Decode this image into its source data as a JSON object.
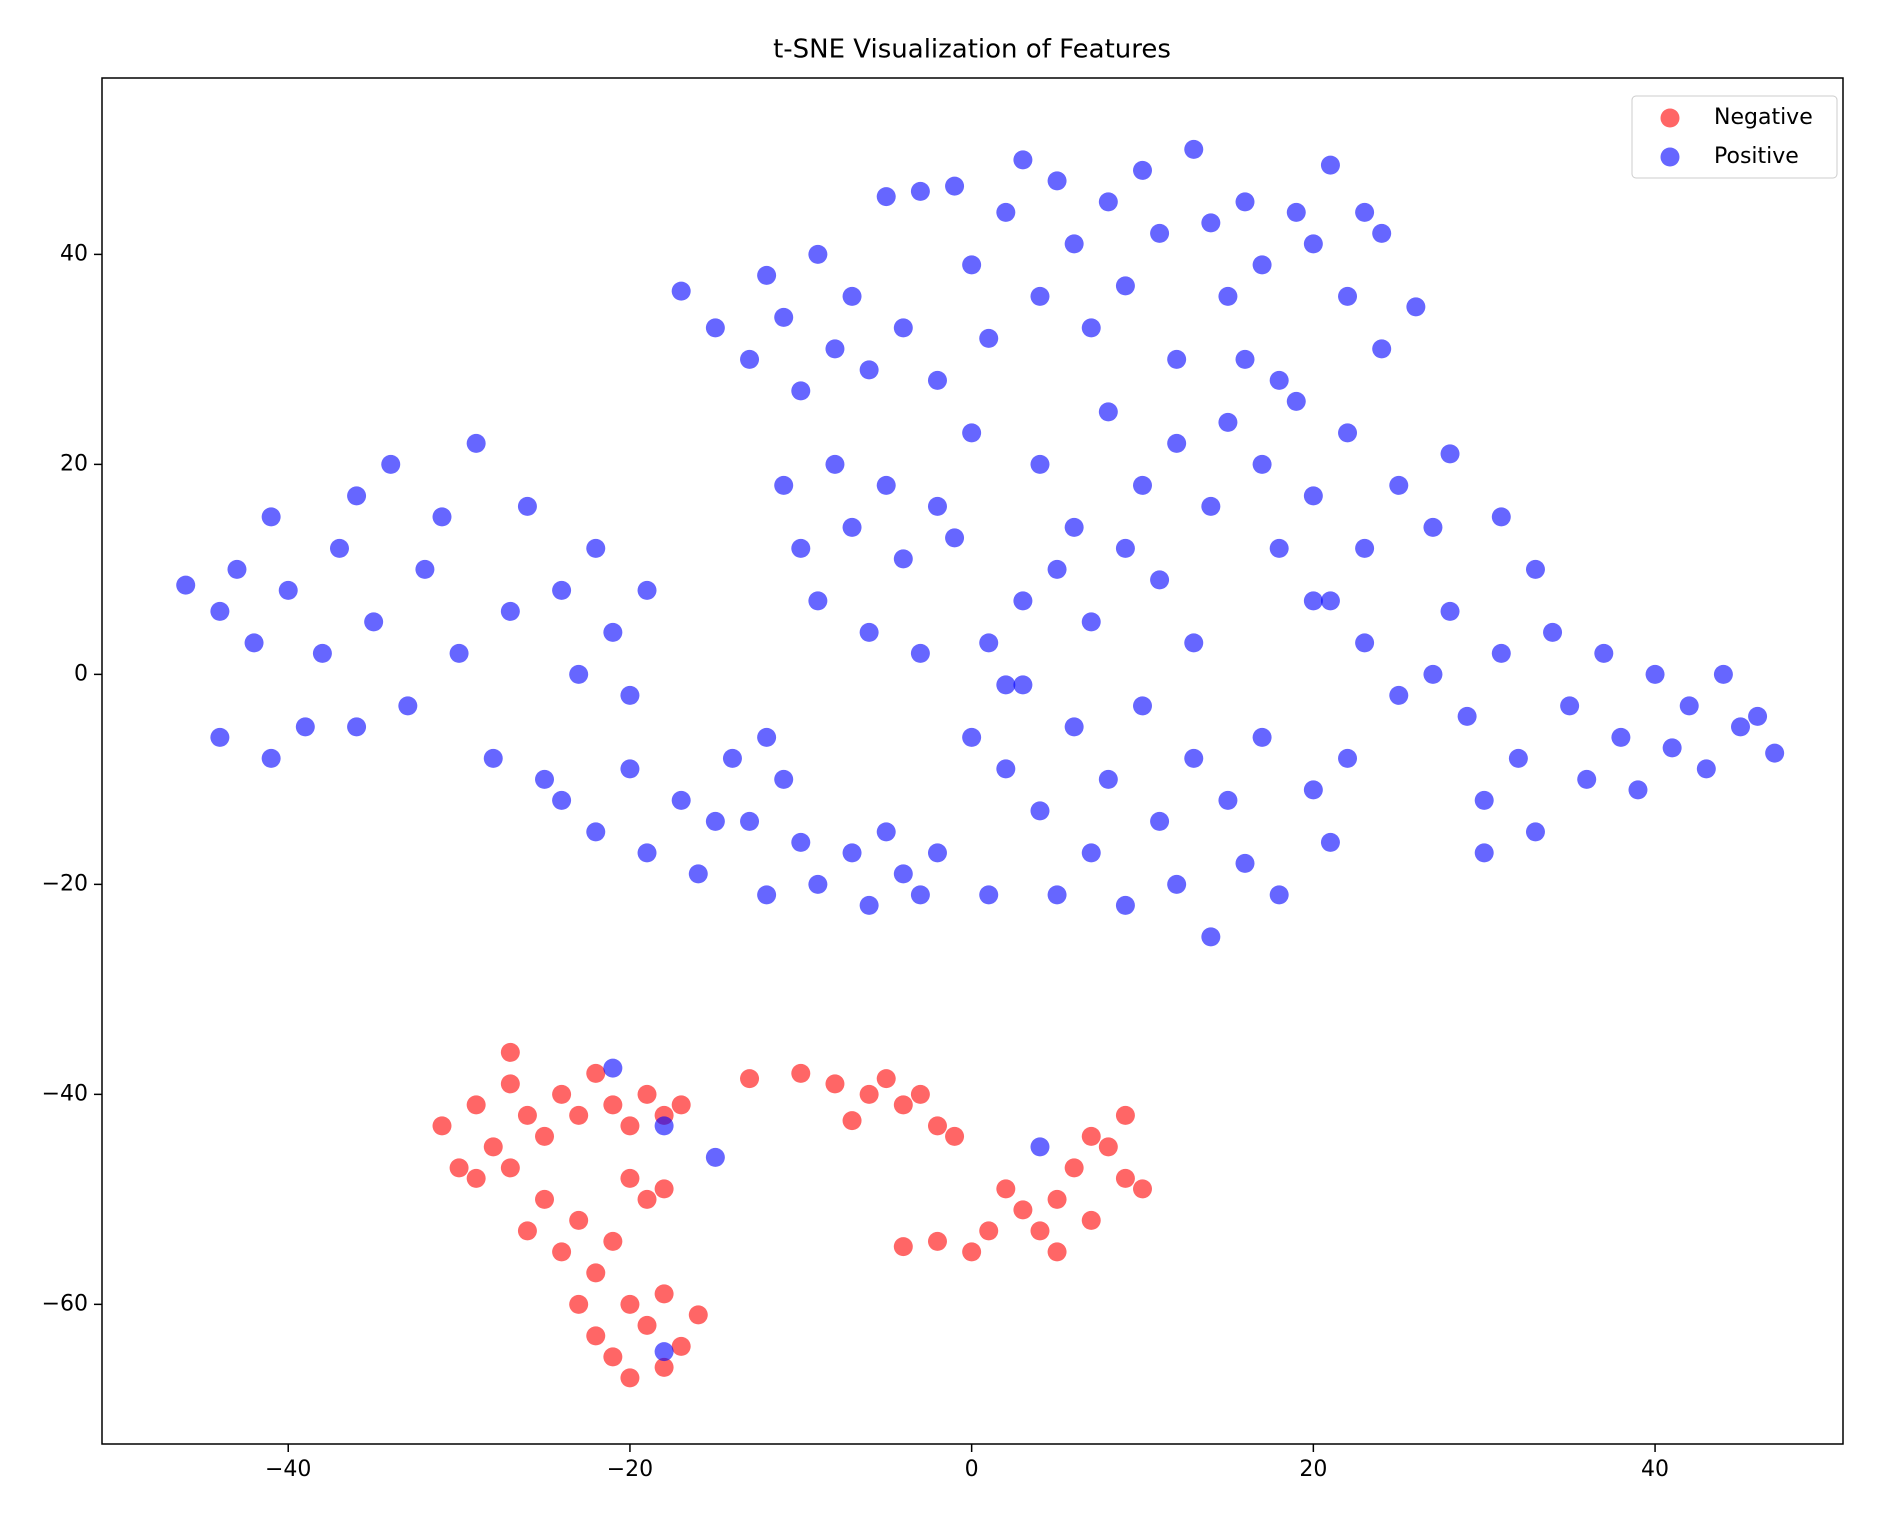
{
  "chart_data": {
    "type": "scatter",
    "title": "t-SNE Visualization of Features",
    "xlim": [
      -50.9,
      51.0
    ],
    "ylim": [
      -73.3,
      56.8
    ],
    "xticks": [
      {
        "value": -40,
        "label": "−40"
      },
      {
        "value": -20,
        "label": "−20"
      },
      0,
      20,
      40
    ],
    "yticks": [
      {
        "value": -60,
        "label": "−60"
      },
      {
        "value": -40,
        "label": "−40"
      },
      {
        "value": -20,
        "label": "−20"
      },
      0,
      20,
      40
    ],
    "legend": "upper right",
    "alpha": 0.6,
    "series": [
      {
        "name": "Negative",
        "color": "#ff0000",
        "x": [
          -31,
          -30,
          -29,
          -28,
          -27,
          -27,
          -26,
          -25,
          -24,
          -23,
          -22,
          -21,
          -20,
          -19,
          -18,
          -17,
          -29,
          -27,
          -20,
          -18,
          -19,
          -26,
          -25,
          -24,
          -23,
          -22,
          -21,
          -20,
          -22,
          -21,
          -20,
          -19,
          -18,
          -17,
          -16,
          -18,
          -23,
          -13,
          -10,
          -8,
          -7,
          -6,
          -5,
          -4,
          -3,
          -2,
          -1,
          -4,
          -2,
          0,
          1,
          2,
          3,
          4,
          5,
          6,
          7,
          8,
          9,
          10,
          9,
          7,
          5
        ],
        "y": [
          -43,
          -47,
          -41,
          -45,
          -36,
          -39,
          -42,
          -44,
          -40,
          -42,
          -38,
          -41,
          -43,
          -40,
          -42,
          -41,
          -48,
          -47,
          -48,
          -49,
          -50,
          -53,
          -50,
          -55,
          -52,
          -57,
          -54,
          -60,
          -63,
          -65,
          -67,
          -62,
          -59,
          -64,
          -61,
          -66,
          -60,
          -38.5,
          -38,
          -39,
          -42.5,
          -40,
          -38.5,
          -41,
          -40,
          -43,
          -44,
          -54.5,
          -54,
          -55,
          -53,
          -49,
          -51,
          -53,
          -50,
          -47,
          -52,
          -45,
          -48,
          -49,
          -42,
          -44,
          -55
        ]
      },
      {
        "name": "Positive",
        "color": "#0000ff",
        "x": [
          -46,
          -44,
          -43,
          -42,
          -41,
          -40,
          -39,
          -38,
          -37,
          -36,
          -35,
          -34,
          -33,
          -32,
          -31,
          -30,
          -29,
          -28,
          -27,
          -26,
          -25,
          -24,
          -23,
          -22,
          -21,
          -20,
          -19,
          -44,
          -41,
          -36,
          -24,
          -22,
          -20,
          -19,
          -17,
          -16,
          -14,
          -13,
          -12,
          -11,
          -10,
          -9,
          -7,
          -6,
          -5,
          -4,
          -3,
          -2,
          -12,
          -15,
          -17,
          -15,
          -13,
          -12,
          -11,
          -10,
          -9,
          -8,
          -7,
          -6,
          -5,
          -4,
          -3,
          -2,
          -1,
          0,
          1,
          2,
          3,
          4,
          5,
          6,
          7,
          8,
          9,
          10,
          11,
          12,
          13,
          14,
          15,
          16,
          17,
          18,
          19,
          20,
          21,
          22,
          23,
          24,
          -11,
          -10,
          -9,
          -8,
          -7,
          -6,
          -5,
          -4,
          -3,
          -2,
          -1,
          0,
          1,
          2,
          3,
          4,
          5,
          6,
          7,
          8,
          9,
          10,
          11,
          12,
          13,
          14,
          15,
          16,
          17,
          18,
          19,
          20,
          21,
          22,
          23,
          24,
          25,
          26,
          27,
          28,
          0,
          1,
          2,
          3,
          4,
          5,
          6,
          7,
          8,
          9,
          10,
          11,
          12,
          13,
          14,
          15,
          16,
          17,
          18,
          20,
          21,
          22,
          20,
          23,
          25,
          27,
          28,
          29,
          30,
          31,
          32,
          33,
          34,
          35,
          36,
          37,
          38,
          39,
          40,
          41,
          42,
          43,
          44,
          45,
          46,
          47,
          31,
          30,
          33,
          -21,
          -18,
          -15,
          -18,
          4
        ],
        "y": [
          8.5,
          6,
          10,
          3,
          15,
          8,
          -5,
          2,
          12,
          17,
          5,
          20,
          -3,
          10,
          15,
          2,
          22,
          -8,
          6,
          16,
          -10,
          8,
          0,
          12,
          4,
          -2,
          8,
          -6,
          -8,
          -5,
          -12,
          -15,
          -9,
          -17,
          -12,
          -19,
          -8,
          -14,
          -21,
          -10,
          -16,
          -20,
          -17,
          -22,
          -15,
          -19,
          -21,
          -17,
          -6,
          -14,
          36.5,
          33,
          30,
          38,
          34,
          27,
          40,
          31,
          36,
          29,
          45.5,
          33,
          46,
          28,
          46.5,
          39,
          32,
          44,
          49,
          36,
          47,
          41,
          33,
          45,
          37,
          48,
          42,
          30,
          50,
          43,
          36,
          45,
          39,
          28,
          44,
          41,
          48.5,
          36,
          44,
          42,
          18,
          12,
          7,
          20,
          14,
          4,
          18,
          11,
          2,
          16,
          13,
          23,
          3,
          -1,
          7,
          20,
          10,
          14,
          5,
          25,
          12,
          18,
          9,
          22,
          3,
          16,
          24,
          30,
          20,
          12,
          26,
          17,
          7,
          23,
          12,
          31,
          18,
          35,
          14,
          21,
          -6,
          -21,
          -9,
          -1,
          -13,
          -21,
          -5,
          -17,
          -10,
          -22,
          -3,
          -14,
          -20,
          -8,
          -25,
          -12,
          -18,
          -6,
          -21,
          -11,
          -16,
          -8,
          7,
          3,
          -2,
          0,
          6,
          -4,
          -12,
          2,
          -8,
          -15,
          4,
          -3,
          -10,
          2,
          -6,
          -11,
          0,
          -7,
          -3,
          -9,
          0,
          -5,
          -4,
          -7.5,
          15,
          -17,
          10,
          -37.5,
          -43,
          -46,
          -64.5,
          -45
        ]
      }
    ]
  }
}
